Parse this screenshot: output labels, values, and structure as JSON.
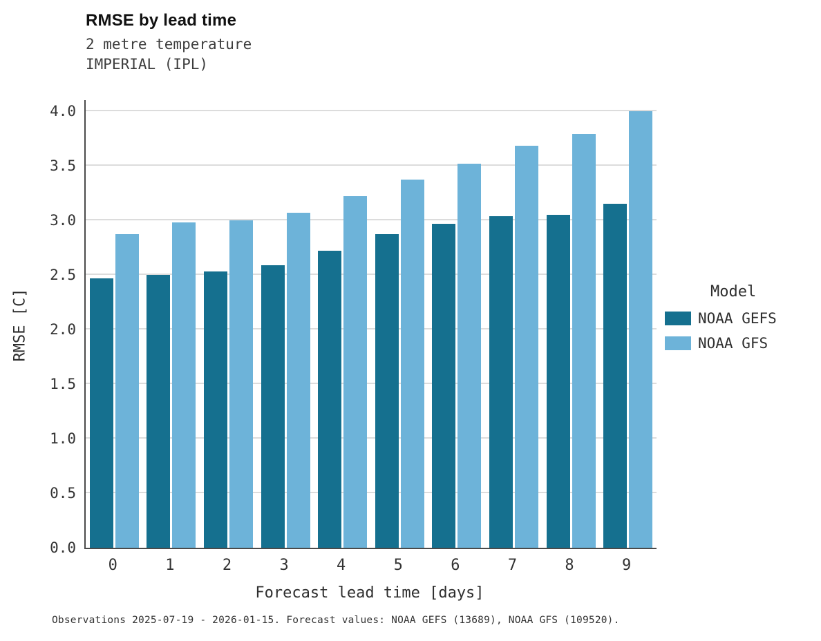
{
  "title": "RMSE by lead time",
  "subtitle1": "2 metre temperature",
  "subtitle2": "IMPERIAL (IPL)",
  "footer": "Observations 2025-07-19 - 2026-01-15. Forecast values: NOAA GEFS (13689), NOAA GFS (109520).",
  "legend": {
    "title": "Model",
    "entries": [
      {
        "label": "NOAA GEFS",
        "color": "#15708f"
      },
      {
        "label": "NOAA GFS",
        "color": "#6db3d9"
      }
    ]
  },
  "chart_data": {
    "type": "bar",
    "title": "RMSE by lead time",
    "categories": [
      "0",
      "1",
      "2",
      "3",
      "4",
      "5",
      "6",
      "7",
      "8",
      "9"
    ],
    "series": [
      {
        "name": "NOAA GEFS",
        "color": "#15708f",
        "values": [
          2.47,
          2.5,
          2.53,
          2.59,
          2.72,
          2.87,
          2.97,
          3.04,
          3.05,
          3.15
        ]
      },
      {
        "name": "NOAA GFS",
        "color": "#6db3d9",
        "values": [
          2.87,
          2.98,
          3.0,
          3.07,
          3.22,
          3.37,
          3.52,
          3.68,
          3.79,
          4.0
        ]
      }
    ],
    "xlabel": "Forecast lead time [days]",
    "ylabel": "RMSE [C]",
    "ylim": [
      0,
      4.0
    ],
    "yticks": [
      0.0,
      0.5,
      1.0,
      1.5,
      2.0,
      2.5,
      3.0,
      3.5,
      4.0
    ],
    "grid": true,
    "legend_position": "right"
  }
}
